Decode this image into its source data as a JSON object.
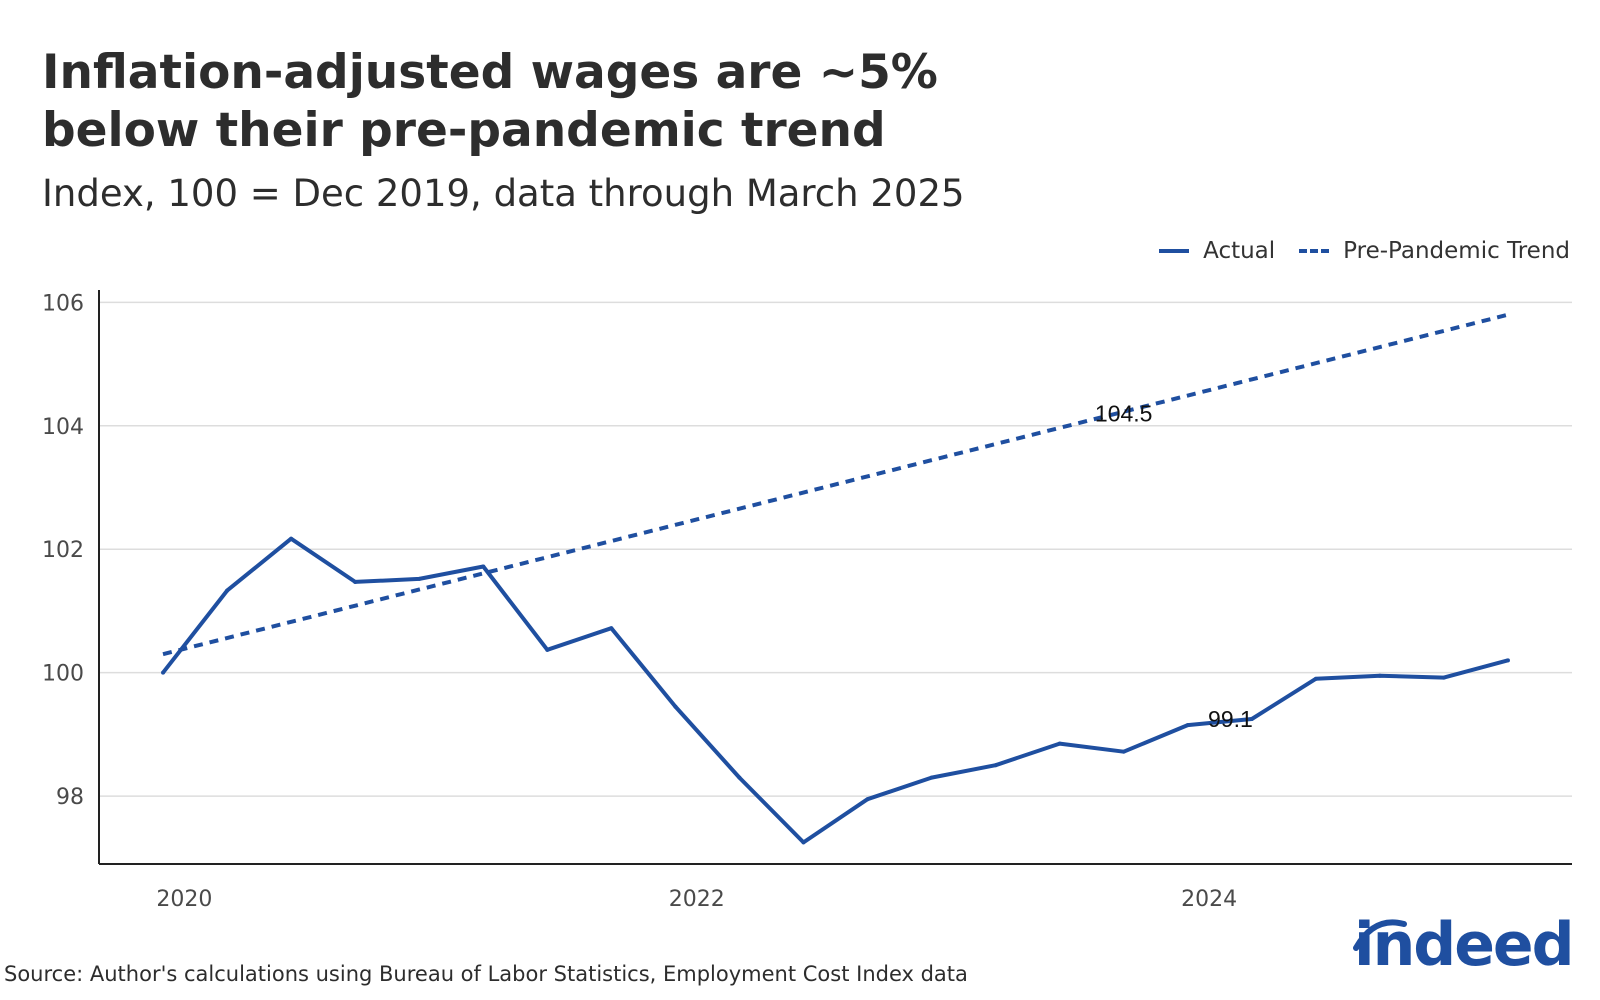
{
  "header": {
    "title_line1": "Inflation-adjusted wages are ~5%",
    "title_line2": "below their pre-pandemic trend",
    "subtitle": "Index, 100 = Dec 2019, data through March 2025"
  },
  "footer": {
    "source": "Source: Author's calculations using Bureau of Labor Statistics, Employment Cost Index data",
    "logo_text": "indeed"
  },
  "colors": {
    "line": "#1f4fa0",
    "grid": "#dddddd",
    "axis": "#222222",
    "tick_text": "#4a4a4a",
    "logo": "#1f4fa0"
  },
  "chart_data": {
    "type": "line",
    "title": "Inflation-adjusted wages are ~5% below their pre-pandemic trend",
    "subtitle": "Index, 100 = Dec 2019, data through March 2025",
    "xlabel": "",
    "ylabel": "",
    "x_ticks": [
      "2020",
      "2022",
      "2024"
    ],
    "y_ticks": [
      98,
      100,
      102,
      104,
      106
    ],
    "xlim": [
      "2019-09",
      "2025-06"
    ],
    "ylim": [
      96.9,
      106.2
    ],
    "grid": "horizontal",
    "legend_position": "top-right",
    "series": [
      {
        "name": "Actual",
        "style": "solid",
        "x": [
          "2019-12",
          "2020-03",
          "2020-06",
          "2020-09",
          "2020-12",
          "2021-03",
          "2021-06",
          "2021-09",
          "2021-12",
          "2022-03",
          "2022-06",
          "2022-09",
          "2022-12",
          "2023-03",
          "2023-06",
          "2023-09",
          "2023-12",
          "2024-03",
          "2024-06",
          "2024-09",
          "2024-12",
          "2025-03"
        ],
        "values": [
          100.0,
          101.33,
          102.17,
          101.47,
          101.52,
          101.72,
          100.37,
          100.72,
          99.45,
          98.3,
          97.25,
          97.95,
          98.3,
          98.5,
          98.85,
          98.72,
          99.15,
          99.25,
          99.9,
          99.95,
          99.92,
          100.2
        ]
      },
      {
        "name": "Pre-Pandemic Trend",
        "style": "dashed",
        "x": [
          "2019-12",
          "2025-03"
        ],
        "values": [
          100.3,
          105.8
        ]
      }
    ],
    "annotations": [
      {
        "text": "104.5",
        "x": "2023-09",
        "y": 104.2
      },
      {
        "text": "99.1",
        "x": "2024-02",
        "y": 99.25
      }
    ]
  }
}
